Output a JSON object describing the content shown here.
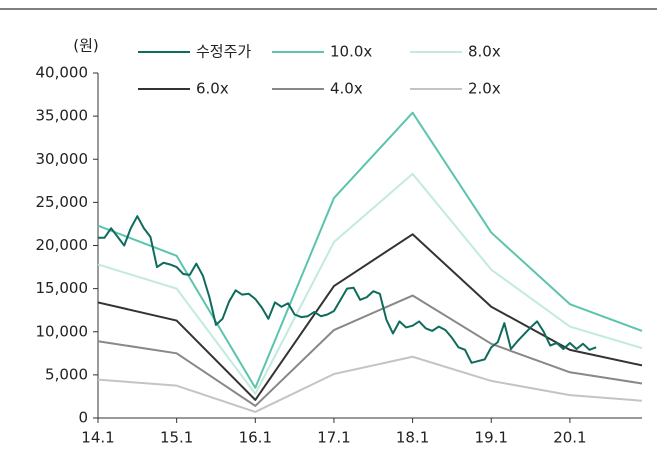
{
  "chart_data": {
    "type": "line",
    "unit_label": "(원)",
    "xlim": [
      0,
      83
    ],
    "xticks": [
      {
        "value": 0,
        "label": "14.1"
      },
      {
        "value": 12,
        "label": "15.1"
      },
      {
        "value": 24,
        "label": "16.1"
      },
      {
        "value": 36,
        "label": "17.1"
      },
      {
        "value": 48,
        "label": "18.1"
      },
      {
        "value": 60,
        "label": "19.1"
      },
      {
        "value": 72,
        "label": "20.1"
      }
    ],
    "ylim": [
      0,
      40000
    ],
    "yticks": [
      0,
      {
        "value": 5000,
        "label": "5,000"
      },
      {
        "value": 10000,
        "label": "10,000"
      },
      {
        "value": 15000,
        "label": "15,000"
      },
      {
        "value": 20000,
        "label": "20,000"
      },
      {
        "value": 25000,
        "label": "25,000"
      },
      {
        "value": 30000,
        "label": "30,000"
      },
      {
        "value": 35000,
        "label": "35,000"
      },
      {
        "value": 40000,
        "label": "40,000"
      }
    ],
    "series": [
      {
        "name": "수정주가",
        "color": "#0f6b5c",
        "x": [
          0,
          1,
          2,
          3,
          4,
          5,
          6,
          7,
          8,
          9,
          10,
          11,
          12,
          13,
          14,
          15,
          16,
          17,
          18,
          19,
          20,
          21,
          22,
          23,
          24,
          25,
          26,
          27,
          28,
          29,
          30,
          31,
          32,
          33,
          34,
          35,
          36,
          37,
          38,
          39,
          40,
          41,
          42,
          43,
          44,
          45,
          46,
          47,
          48,
          49,
          50,
          51,
          52,
          53,
          54,
          55,
          56,
          57,
          58,
          59,
          60,
          61,
          62,
          63,
          64,
          65,
          66,
          67,
          68,
          69,
          70,
          71,
          72,
          73,
          74,
          75,
          76
        ],
        "values": [
          20900,
          20900,
          22000,
          21000,
          20000,
          22000,
          23400,
          22000,
          21000,
          17500,
          18000,
          17800,
          17500,
          16700,
          16600,
          17900,
          16500,
          14000,
          10800,
          11500,
          13500,
          14800,
          14300,
          14400,
          13800,
          12800,
          11500,
          13400,
          12900,
          13300,
          12000,
          11700,
          11800,
          12300,
          11800,
          12000,
          12400,
          13700,
          15000,
          15100,
          13700,
          14000,
          14700,
          14400,
          11400,
          9800,
          11200,
          10500,
          10700,
          11200,
          10400,
          10100,
          10600,
          10200,
          9300,
          8200,
          7900,
          6400,
          6600,
          6800,
          8200,
          8800,
          11000,
          8000,
          8900,
          9700,
          10500,
          11200,
          10000,
          8400,
          8700,
          8000,
          8700,
          8000,
          8600,
          7900,
          8200
        ]
      },
      {
        "name": "10.0x",
        "color": "#5cc4ae",
        "x": [
          0,
          12,
          24,
          36,
          48,
          60,
          72,
          83
        ],
        "values": [
          22300,
          18800,
          3500,
          25500,
          35400,
          21500,
          13200,
          10100
        ]
      },
      {
        "name": "8.0x",
        "color": "#c2eadd",
        "x": [
          0,
          12,
          24,
          36,
          48,
          60,
          72,
          83
        ],
        "values": [
          17800,
          15000,
          2800,
          20400,
          28300,
          17200,
          10600,
          8100
        ]
      },
      {
        "name": "6.0x",
        "color": "#333333",
        "x": [
          0,
          12,
          24,
          36,
          48,
          60,
          72,
          83
        ],
        "values": [
          13400,
          11300,
          2100,
          15300,
          21300,
          12900,
          7900,
          6100
        ]
      },
      {
        "name": "4.0x",
        "color": "#888888",
        "x": [
          0,
          12,
          24,
          36,
          48,
          60,
          72,
          83
        ],
        "values": [
          8900,
          7500,
          1400,
          10200,
          14200,
          8600,
          5300,
          4000
        ]
      },
      {
        "name": "2.0x",
        "color": "#c4c4c4",
        "x": [
          0,
          12,
          24,
          36,
          48,
          60,
          72,
          83
        ],
        "values": [
          4450,
          3750,
          700,
          5100,
          7100,
          4300,
          2650,
          2000
        ]
      }
    ]
  }
}
